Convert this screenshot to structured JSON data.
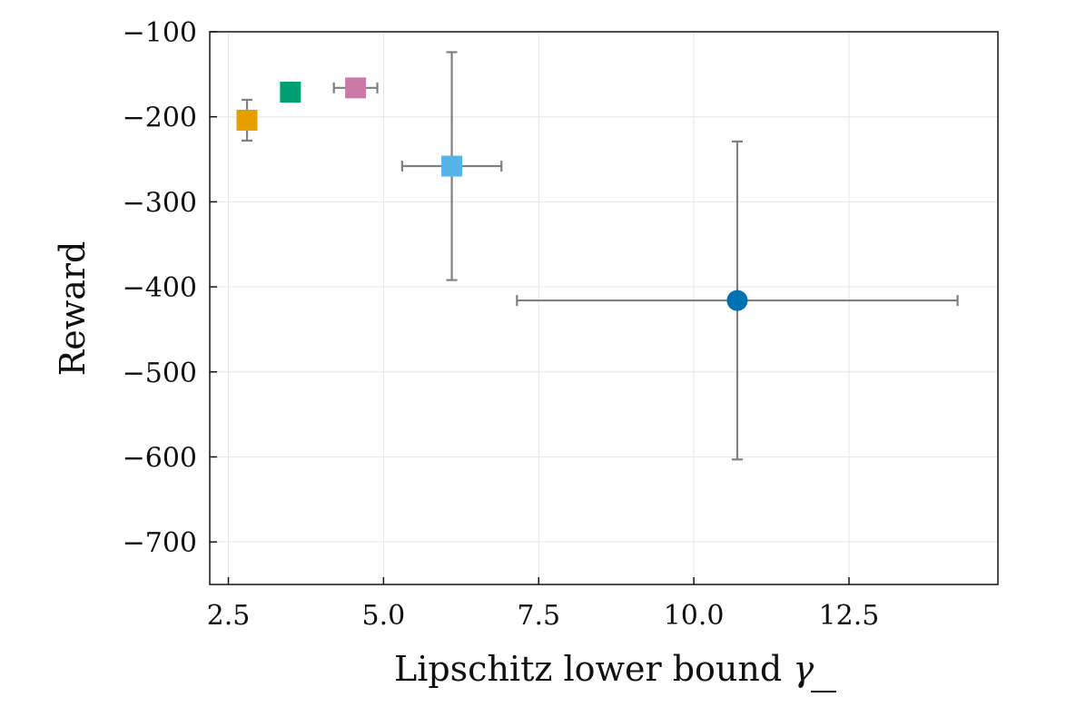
{
  "chart_data": {
    "type": "scatter",
    "title": "",
    "xlabel": "Lipschitz lower bound",
    "xlabel_symbol": "γ",
    "ylabel": "Reward",
    "xlim": [
      2.2,
      14.9
    ],
    "ylim": [
      -750,
      -100
    ],
    "xticks": [
      2.5,
      5.0,
      7.5,
      10.0,
      12.5
    ],
    "xtick_labels": [
      "2.5",
      "5.0",
      "7.5",
      "10.0",
      "12.5"
    ],
    "yticks": [
      -100,
      -200,
      -300,
      -400,
      -500,
      -600,
      -700
    ],
    "ytick_labels": [
      "−100",
      "−200",
      "−300",
      "−400",
      "−500",
      "−600",
      "−700"
    ],
    "grid": true,
    "errorbar_color": "#808080",
    "points": [
      {
        "x": 2.8,
        "y": -204,
        "xerr": 0.0,
        "yerr": 24,
        "marker": "square",
        "color": "#E69F00"
      },
      {
        "x": 3.5,
        "y": -171,
        "xerr": 0.1,
        "yerr": 5,
        "marker": "square",
        "color": "#009E73"
      },
      {
        "x": 4.55,
        "y": -166,
        "xerr": 0.35,
        "yerr": 0,
        "marker": "square",
        "color": "#CC79A7"
      },
      {
        "x": 6.1,
        "y": -258,
        "xerr": 0.8,
        "yerr": 134,
        "marker": "square",
        "color": "#56B4E9"
      },
      {
        "x": 10.7,
        "y": -416,
        "xerr": 3.55,
        "yerr": 187,
        "marker": "circle",
        "color": "#0072B2"
      }
    ]
  }
}
